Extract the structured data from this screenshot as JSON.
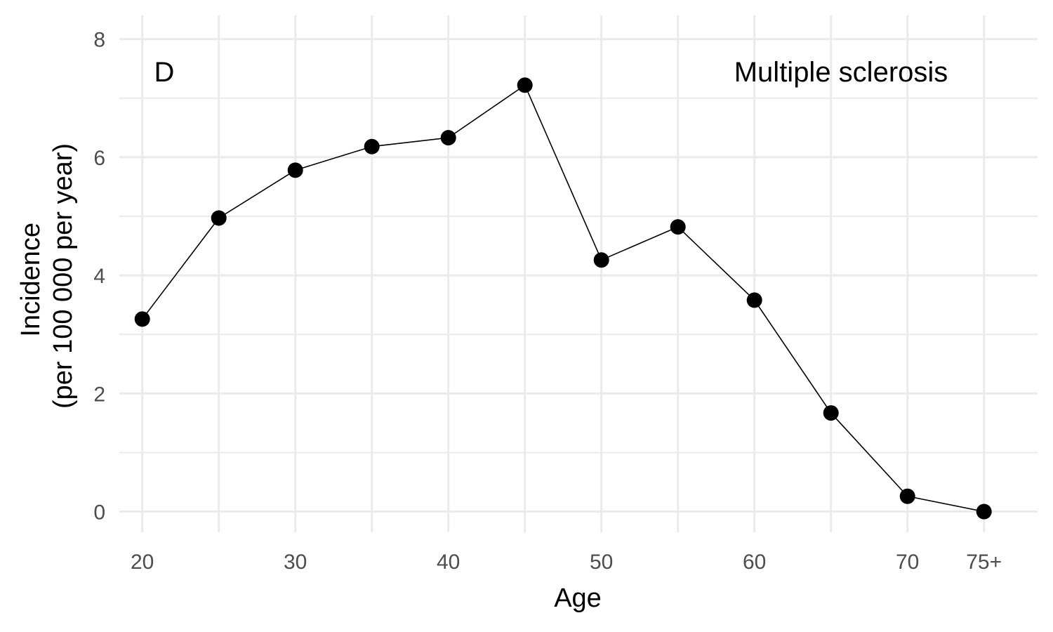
{
  "chart_data": {
    "type": "line",
    "x": [
      20,
      25,
      30,
      35,
      40,
      45,
      50,
      55,
      60,
      65,
      70,
      75
    ],
    "values": [
      3.26,
      4.97,
      5.78,
      6.18,
      6.33,
      7.22,
      4.26,
      4.82,
      3.58,
      1.67,
      0.26,
      0.0
    ],
    "xticks": [
      20,
      30,
      40,
      50,
      60,
      70,
      75
    ],
    "xtick_labels": [
      "20",
      "30",
      "40",
      "50",
      "60",
      "70",
      "75+"
    ],
    "yticks": [
      0,
      2,
      4,
      6,
      8
    ],
    "ytick_labels": [
      "0",
      "2",
      "4",
      "6",
      "8"
    ],
    "xlim": [
      18.5,
      78.5
    ],
    "ylim": [
      -0.35,
      8.4
    ],
    "xlabel": "Age",
    "ylabel_lines": [
      "Incidence",
      "(per 100 000 per year)"
    ],
    "panel_label": "D",
    "annotation": "Multiple sclerosis",
    "grid": true,
    "colors": {
      "line": "#000000",
      "points": "#000000",
      "grid": "#ebebeb",
      "tick_text": "#4d4d4d"
    }
  }
}
